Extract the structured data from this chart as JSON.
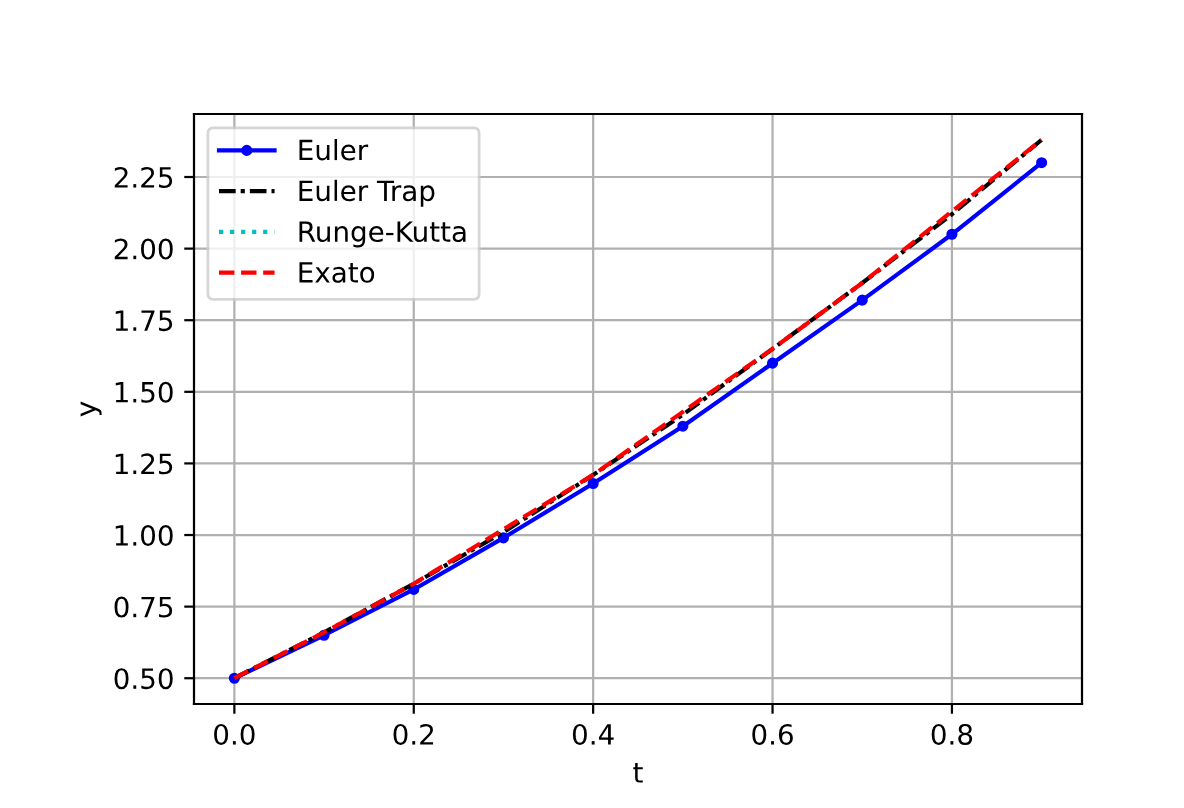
{
  "chart_data": {
    "type": "line",
    "xlabel": "t",
    "ylabel": "y",
    "x": [
      0,
      0.1,
      0.2,
      0.3,
      0.4,
      0.5,
      0.6,
      0.7,
      0.8,
      0.9
    ],
    "series": [
      {
        "name": "Euler",
        "color": "#0000ff",
        "marker": "circle",
        "line_style": "solid",
        "values": [
          0.5,
          0.65,
          0.81,
          0.99,
          1.18,
          1.38,
          1.6,
          1.82,
          2.05,
          2.3
        ]
      },
      {
        "name": "Euler Trap",
        "color": "#000000",
        "marker": "none",
        "line_style": "dashdot",
        "values": [
          0.5,
          0.66,
          0.83,
          1.01,
          1.21,
          1.42,
          1.65,
          1.88,
          2.12,
          2.38
        ]
      },
      {
        "name": "Runge-Kutta",
        "color": "#00bfbf",
        "marker": "none",
        "line_style": "dotted",
        "values": [
          null,
          null,
          null,
          null,
          null,
          null,
          null,
          null,
          null,
          null
        ]
      },
      {
        "name": "Exato",
        "color": "#ff0000",
        "marker": "none",
        "line_style": "dashed",
        "values": [
          0.5,
          0.66,
          0.83,
          1.02,
          1.21,
          1.43,
          1.65,
          1.88,
          2.13,
          2.38
        ]
      }
    ],
    "xlim": [
      -0.045,
      0.945
    ],
    "xticks": [
      {
        "value": 0,
        "label": "0.0"
      },
      0.2,
      0.4,
      0.6,
      0.8
    ],
    "ylim": [
      0.41,
      2.47
    ],
    "yticks": [
      {
        "value": 0.5,
        "label": "0.50"
      },
      0.75,
      {
        "value": 1,
        "label": "1.00"
      },
      1.25,
      {
        "value": 1.5,
        "label": "1.50"
      },
      1.75,
      {
        "value": 2,
        "label": "2.00"
      },
      2.25
    ],
    "grid": true,
    "legend": "top left"
  }
}
